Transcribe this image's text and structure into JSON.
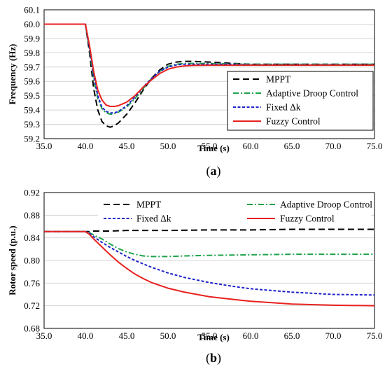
{
  "colors": {
    "mppt": "#000000",
    "adaptive": "#1fa34a",
    "fixed": "#1f22c8",
    "fuzzy": "#e8211f"
  },
  "chart_data": [
    {
      "type": "line",
      "caption": {
        "open": "(",
        "letter": "a",
        "close": ")"
      },
      "xlabel": "Time (s)",
      "ylabel": "Frequency (Hz)",
      "xlim": [
        35,
        75
      ],
      "ylim": [
        59.2,
        60.1
      ],
      "xticks": [
        "35.0",
        "40.0",
        "45.0",
        "50.0",
        "55.0",
        "60.0",
        "65.0",
        "70.0",
        "75.0"
      ],
      "yticks": [
        "59.2",
        "59.3",
        "59.4",
        "59.5",
        "59.6",
        "59.7",
        "59.8",
        "59.9",
        "60.0",
        "60.1"
      ],
      "legend_position": "bottom-right",
      "series": [
        {
          "name": "MPPT",
          "key": "mppt",
          "dash": "9,5",
          "x": [
            35,
            40,
            40.5,
            41,
            41.5,
            42,
            42.5,
            43,
            43.5,
            44,
            45,
            46,
            47,
            48,
            49,
            50,
            51,
            52,
            53,
            55,
            58,
            60,
            65,
            70,
            75
          ],
          "y": [
            60.0,
            60.0,
            59.8,
            59.55,
            59.4,
            59.32,
            59.29,
            59.28,
            59.29,
            59.31,
            59.37,
            59.45,
            59.54,
            59.62,
            59.68,
            59.72,
            59.735,
            59.74,
            59.74,
            59.735,
            59.725,
            59.72,
            59.72,
            59.72,
            59.72
          ]
        },
        {
          "name": "Adaptive Droop Control",
          "key": "adaptive",
          "dash": "8,3,2,3",
          "x": [
            35,
            40,
            40.5,
            41,
            41.5,
            42,
            42.5,
            43,
            43.5,
            44,
            45,
            46,
            47,
            48,
            49,
            50,
            51,
            52,
            53,
            55,
            58,
            60,
            65,
            70,
            75
          ],
          "y": [
            60.0,
            60.0,
            59.82,
            59.62,
            59.48,
            59.41,
            59.38,
            59.37,
            59.375,
            59.385,
            59.42,
            59.48,
            59.55,
            59.62,
            59.67,
            59.705,
            59.72,
            59.725,
            59.725,
            59.725,
            59.722,
            59.72,
            59.72,
            59.72,
            59.72
          ]
        },
        {
          "name": "Fixed Δk",
          "key": "fixed",
          "dash": "4,2.5",
          "x": [
            35,
            40,
            40.5,
            41,
            41.5,
            42,
            42.5,
            43,
            43.5,
            44,
            45,
            46,
            47,
            48,
            49,
            50,
            51,
            52,
            53,
            55,
            58,
            60,
            65,
            70,
            75
          ],
          "y": [
            60.0,
            60.0,
            59.83,
            59.64,
            59.5,
            59.42,
            59.39,
            59.38,
            59.38,
            59.39,
            59.43,
            59.49,
            59.56,
            59.62,
            59.67,
            59.7,
            59.715,
            59.72,
            59.72,
            59.72,
            59.72,
            59.715,
            59.715,
            59.715,
            59.715
          ]
        },
        {
          "name": "Fuzzy Control",
          "key": "fuzzy",
          "dash": "",
          "x": [
            35,
            40,
            40.5,
            41,
            41.5,
            42,
            42.5,
            43,
            43.5,
            44,
            45,
            46,
            47,
            48,
            49,
            50,
            51,
            52,
            53,
            55,
            58,
            60,
            65,
            70,
            75
          ],
          "y": [
            60.0,
            60.0,
            59.85,
            59.67,
            59.54,
            59.47,
            59.435,
            59.425,
            59.425,
            59.43,
            59.455,
            59.5,
            59.56,
            59.61,
            59.655,
            59.685,
            59.7,
            59.708,
            59.712,
            59.713,
            59.713,
            59.713,
            59.713,
            59.713,
            59.713
          ]
        }
      ]
    },
    {
      "type": "line",
      "caption": {
        "open": "(",
        "letter": "b",
        "close": ")"
      },
      "xlabel": "Time (s)",
      "ylabel": "Rotor speed (p.u.)",
      "xlim": [
        35,
        75
      ],
      "ylim": [
        0.68,
        0.92
      ],
      "xticks": [
        "35.0",
        "40.0",
        "45.0",
        "50.0",
        "55.0",
        "60.0",
        "65.0",
        "70.0",
        "75.0"
      ],
      "yticks": [
        "0.68",
        "0.72",
        "0.76",
        "0.80",
        "0.84",
        "0.88",
        "0.92"
      ],
      "legend_position": "top",
      "series": [
        {
          "name": "MPPT",
          "key": "mppt",
          "dash": "9,5",
          "x": [
            35,
            40,
            40.5,
            41,
            43,
            45,
            50,
            55,
            60,
            65,
            70,
            75
          ],
          "y": [
            0.851,
            0.851,
            0.851,
            0.852,
            0.852,
            0.853,
            0.853,
            0.854,
            0.854,
            0.855,
            0.855,
            0.855
          ]
        },
        {
          "name": "Adaptive Droop Control",
          "key": "adaptive",
          "dash": "8,3,2,3",
          "x": [
            35,
            40,
            40.5,
            41,
            42,
            43,
            44,
            45,
            46,
            47,
            48,
            49,
            50,
            52,
            55,
            60,
            65,
            70,
            75
          ],
          "y": [
            0.851,
            0.851,
            0.849,
            0.845,
            0.838,
            0.829,
            0.821,
            0.815,
            0.811,
            0.808,
            0.807,
            0.807,
            0.807,
            0.808,
            0.809,
            0.81,
            0.811,
            0.811,
            0.811
          ]
        },
        {
          "name": "Fixed Δk",
          "key": "fixed",
          "dash": "4,2.5",
          "x": [
            35,
            40,
            40.5,
            41,
            42,
            43,
            44,
            45,
            46,
            47,
            48,
            50,
            52,
            55,
            58,
            60,
            65,
            70,
            75
          ],
          "y": [
            0.851,
            0.851,
            0.848,
            0.842,
            0.832,
            0.823,
            0.815,
            0.807,
            0.8,
            0.794,
            0.788,
            0.778,
            0.77,
            0.761,
            0.754,
            0.75,
            0.744,
            0.74,
            0.739
          ]
        },
        {
          "name": "Fuzzy Control",
          "key": "fuzzy",
          "dash": "",
          "x": [
            35,
            40,
            40.5,
            41,
            42,
            43,
            44,
            45,
            46,
            47,
            48,
            50,
            52,
            55,
            58,
            60,
            65,
            70,
            75
          ],
          "y": [
            0.851,
            0.851,
            0.846,
            0.838,
            0.824,
            0.81,
            0.797,
            0.786,
            0.776,
            0.768,
            0.761,
            0.751,
            0.744,
            0.736,
            0.731,
            0.728,
            0.723,
            0.721,
            0.72
          ]
        }
      ]
    }
  ]
}
